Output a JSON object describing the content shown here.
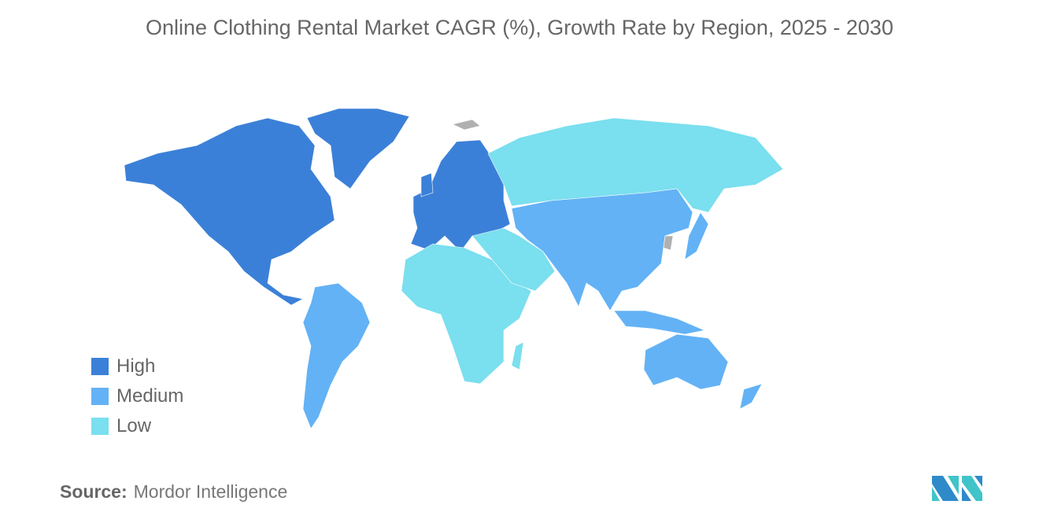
{
  "title": "Online Clothing Rental Market CAGR (%), Growth Rate by Region, 2025 - 2030",
  "legend": [
    {
      "label": "High",
      "color": "#3b80d8"
    },
    {
      "label": "Medium",
      "color": "#63b2f5"
    },
    {
      "label": "Low",
      "color": "#7adfee"
    }
  ],
  "regions": {
    "North America": "High",
    "Europe": "High",
    "South America": "Medium",
    "Asia Pacific": "Medium",
    "Middle East and Africa": "Low",
    "Russia": "Low"
  },
  "no_data_color": "#b0b0b0",
  "source": {
    "label": "Source:",
    "value": "Mordor Intelligence"
  }
}
